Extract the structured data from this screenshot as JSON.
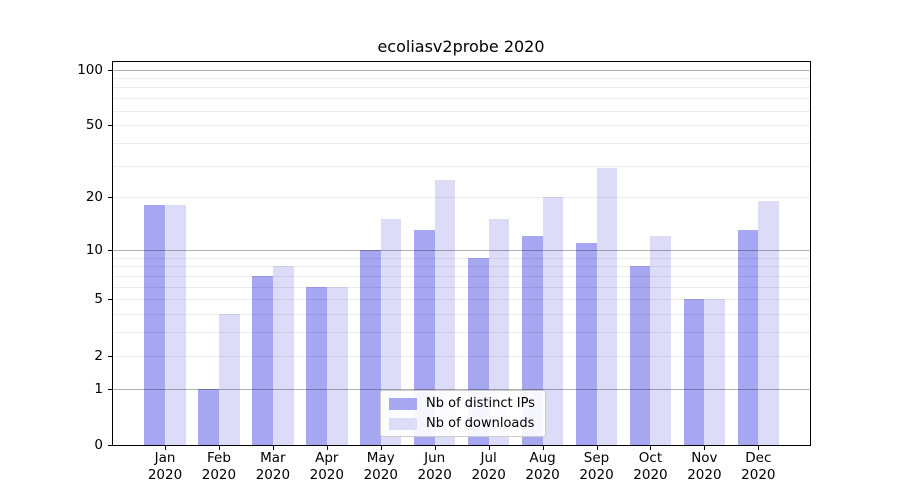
{
  "chart_data": {
    "type": "bar",
    "title": "ecoliasv2probe 2020",
    "months": [
      "Jan",
      "Feb",
      "Mar",
      "Apr",
      "May",
      "Jun",
      "Jul",
      "Aug",
      "Sep",
      "Oct",
      "Nov",
      "Dec"
    ],
    "year": "2020",
    "series": [
      {
        "name": "Nb of distinct IPs",
        "color": "#a6a6f1",
        "values": [
          18,
          1,
          7,
          6,
          10,
          13,
          9,
          12,
          11,
          8,
          5,
          13
        ]
      },
      {
        "name": "Nb of downloads",
        "color": "#dcdcf8",
        "values": [
          18,
          4,
          8,
          6,
          15,
          25,
          15,
          20,
          29,
          12,
          5,
          19
        ]
      }
    ],
    "yaxis": {
      "scale": "log1p",
      "ylim": [
        0,
        100
      ],
      "ticks": [
        0,
        1,
        2,
        5,
        10,
        20,
        50,
        100
      ],
      "tick_labels": [
        "0",
        "1",
        "2",
        "5",
        "10",
        "20",
        "50",
        "100"
      ],
      "major_gridlines": [
        1,
        10,
        100
      ],
      "minor_gridlines": [
        2,
        3,
        4,
        5,
        6,
        7,
        8,
        9,
        20,
        30,
        40,
        50,
        60,
        70,
        80,
        90
      ]
    },
    "legend": {
      "position": "lower-center",
      "entries": [
        "Nb of distinct IPs",
        "Nb of downloads"
      ]
    },
    "grid": true,
    "colors": {
      "background": "#ffffff",
      "major_grid": "#b0b0b0",
      "minor_grid": "#ececec",
      "axis": "#000000",
      "text": "#000000"
    }
  }
}
